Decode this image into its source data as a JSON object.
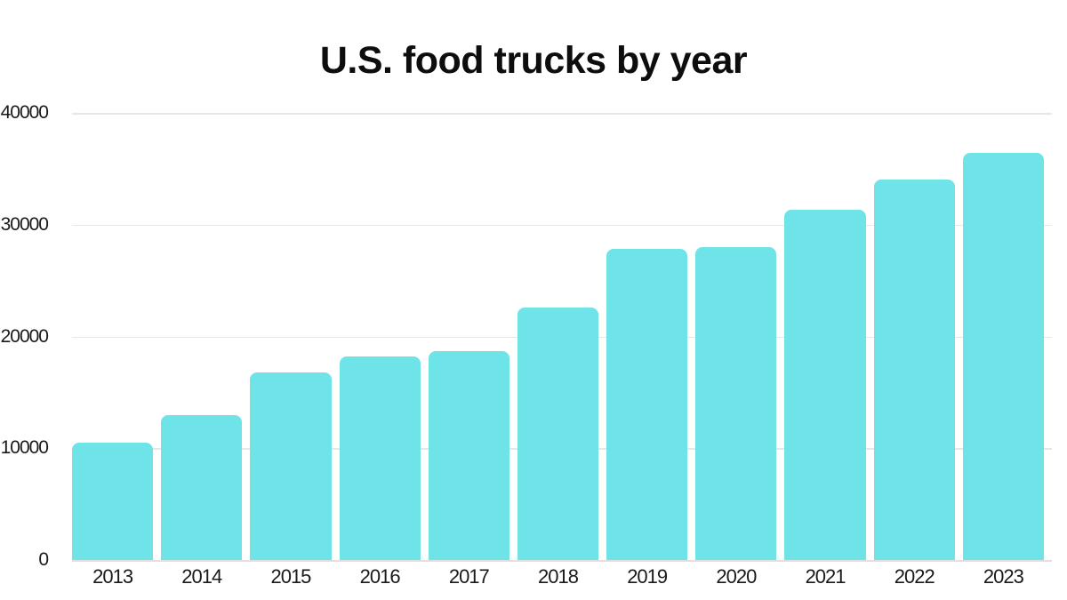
{
  "title": "U.S. food trucks by year",
  "chart_data": {
    "type": "bar",
    "title": "U.S. food trucks by year",
    "categories": [
      "2013",
      "2014",
      "2015",
      "2016",
      "2017",
      "2018",
      "2019",
      "2020",
      "2021",
      "2022",
      "2023"
    ],
    "values": [
      10500,
      13000,
      16800,
      18200,
      18700,
      22600,
      27800,
      28000,
      31300,
      34000,
      36400
    ],
    "xlabel": "",
    "ylabel": "",
    "ylim": [
      0,
      40000
    ],
    "yticks": [
      0,
      10000,
      20000,
      30000,
      40000
    ],
    "grid": true,
    "legend": "none",
    "bar_color": "#6ee3e8",
    "background_color": "#ffffff",
    "title_color": "#0d0d0d",
    "tick_label_color": "#1a1a1a",
    "gridline_color": "#e7e7e7"
  }
}
